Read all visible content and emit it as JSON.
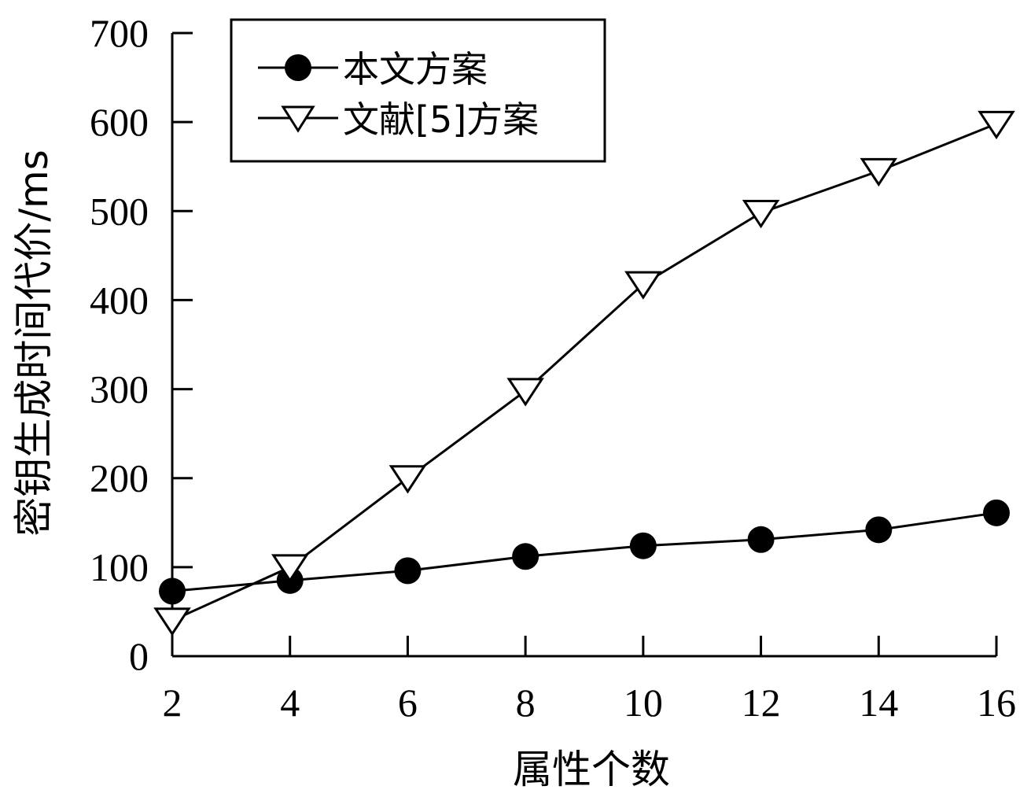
{
  "chart_data": {
    "type": "line",
    "xlabel": "属性个数",
    "ylabel": "密钥生成时间代价/ms",
    "x": [
      2,
      4,
      6,
      8,
      10,
      12,
      14,
      16
    ],
    "xlim": [
      2,
      16
    ],
    "ylim": [
      0,
      700
    ],
    "xticks": [
      "2",
      "4",
      "6",
      "8",
      "10",
      "12",
      "14",
      "16"
    ],
    "yticks": [
      "0",
      "100",
      "200",
      "300",
      "400",
      "500",
      "600",
      "700"
    ],
    "grid": false,
    "legend_position": "top-left",
    "series": [
      {
        "name": "本文方案",
        "marker": "filled-circle",
        "color": "#000000",
        "values": [
          73,
          85,
          96,
          112,
          124,
          131,
          142,
          161
        ]
      },
      {
        "name": "文献[5]方案",
        "marker": "open-triangle-down",
        "color": "#000000",
        "values": [
          40,
          100,
          200,
          298,
          418,
          498,
          545,
          598
        ]
      }
    ]
  }
}
